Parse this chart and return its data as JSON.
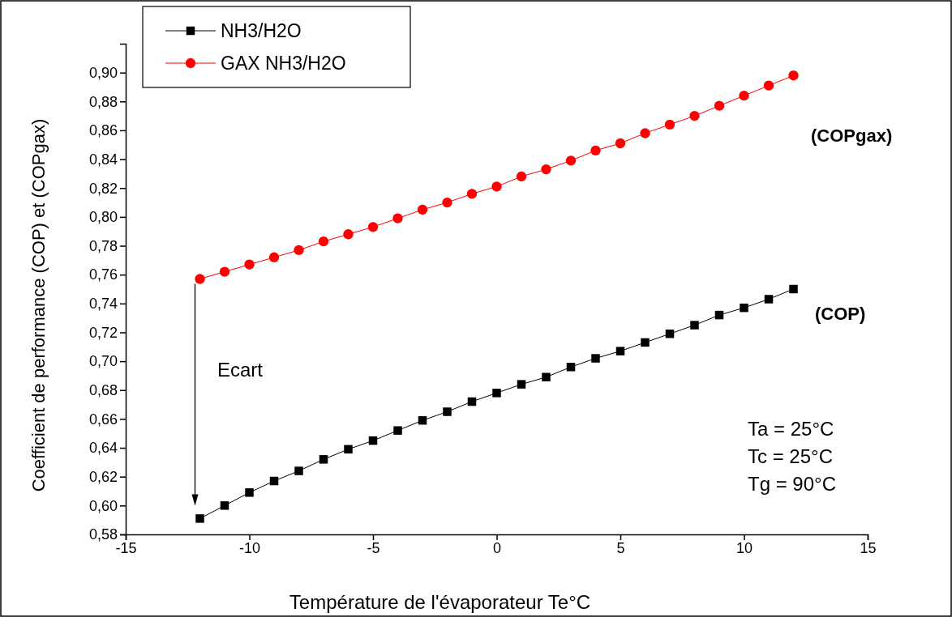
{
  "chart_data": {
    "type": "line",
    "xlabel": "Température de l'évaporateur Te°C",
    "ylabel": "Coefficient de performance (COP) et (COPgax)",
    "x": [
      -12,
      -11,
      -10,
      -9,
      -8,
      -7,
      -6,
      -5,
      -4,
      -3,
      -2,
      -1,
      0,
      1,
      2,
      3,
      4,
      5,
      6,
      7,
      8,
      9,
      10,
      11,
      12
    ],
    "series": [
      {
        "name": "NH3/H2O",
        "color": "#000000",
        "marker": "square",
        "values": [
          0.591,
          0.6,
          0.609,
          0.617,
          0.624,
          0.632,
          0.639,
          0.645,
          0.652,
          0.659,
          0.665,
          0.672,
          0.678,
          0.684,
          0.689,
          0.696,
          0.702,
          0.707,
          0.713,
          0.719,
          0.725,
          0.732,
          0.737,
          0.743,
          0.75
        ]
      },
      {
        "name": "GAX NH3/H2O",
        "color": "#ff0000",
        "marker": "circle",
        "values": [
          0.757,
          0.762,
          0.767,
          0.772,
          0.777,
          0.783,
          0.788,
          0.793,
          0.799,
          0.805,
          0.81,
          0.816,
          0.821,
          0.828,
          0.833,
          0.839,
          0.846,
          0.851,
          0.858,
          0.864,
          0.87,
          0.877,
          0.884,
          0.891,
          0.898
        ]
      }
    ],
    "xlim": [
      -15,
      15
    ],
    "xticks": [
      -15,
      -10,
      -5,
      0,
      5,
      10,
      15
    ],
    "ylim": [
      0.58,
      0.92
    ],
    "yticks": [
      {
        "value": 0.58,
        "label": "0,58"
      },
      {
        "value": 0.6,
        "label": "0,60"
      },
      {
        "value": 0.62,
        "label": "0,62"
      },
      {
        "value": 0.64,
        "label": "0,64"
      },
      {
        "value": 0.66,
        "label": "0,66"
      },
      {
        "value": 0.68,
        "label": "0,68"
      },
      {
        "value": 0.7,
        "label": "0,70"
      },
      {
        "value": 0.72,
        "label": "0,72"
      },
      {
        "value": 0.74,
        "label": "0,74"
      },
      {
        "value": 0.76,
        "label": "0,76"
      },
      {
        "value": 0.78,
        "label": "0,78"
      },
      {
        "value": 0.8,
        "label": "0,80"
      },
      {
        "value": 0.82,
        "label": "0,82"
      },
      {
        "value": 0.84,
        "label": "0,84"
      },
      {
        "value": 0.86,
        "label": "0,86"
      },
      {
        "value": 0.88,
        "label": "0,88"
      },
      {
        "value": 0.9,
        "label": "0,90"
      }
    ],
    "legend": "top left",
    "line_style": "solid",
    "grid": false,
    "annotations": [
      "(COPgax)",
      "(COP)",
      "Ecart",
      "Ta = 25°C",
      "Tc = 25°C",
      "Tg = 90°C"
    ]
  }
}
